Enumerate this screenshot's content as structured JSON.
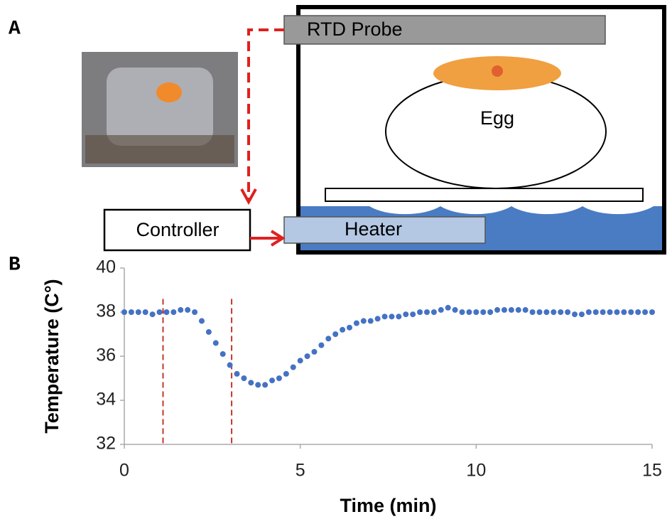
{
  "panel_a": {
    "label": "A",
    "probe": "RTD Probe",
    "egg": "Egg",
    "controller": "Controller",
    "heater": "Heater"
  },
  "panel_b": {
    "label": "B"
  },
  "chart_data": {
    "type": "scatter",
    "xlabel": "Time (min)",
    "ylabel": "Temperature (C°)",
    "xlim": [
      0,
      15
    ],
    "xticks": [
      0,
      5,
      10,
      15
    ],
    "ylim": [
      32,
      40
    ],
    "yticks": [
      32,
      34,
      36,
      38,
      40
    ],
    "vlines": [
      1.1,
      3.05
    ],
    "vline_color": "#c0392b",
    "series": [
      {
        "color": "#4472c4",
        "x": [
          0,
          0.2,
          0.4,
          0.6,
          0.8,
          1,
          1.2,
          1.4,
          1.6,
          1.8,
          2,
          2.2,
          2.4,
          2.6,
          2.8,
          3,
          3.2,
          3.4,
          3.6,
          3.8,
          4,
          4.2,
          4.4,
          4.6,
          4.8,
          5,
          5.2,
          5.4,
          5.6,
          5.8,
          6,
          6.2,
          6.4,
          6.6,
          6.8,
          7,
          7.2,
          7.4,
          7.6,
          7.8,
          8,
          8.2,
          8.4,
          8.6,
          8.8,
          9,
          9.2,
          9.4,
          9.6,
          9.8,
          10,
          10.2,
          10.4,
          10.6,
          10.8,
          11,
          11.2,
          11.4,
          11.6,
          11.8,
          12,
          12.2,
          12.4,
          12.6,
          12.8,
          13,
          13.2,
          13.4,
          13.6,
          13.8,
          14,
          14.2,
          14.4,
          14.6,
          14.8,
          15
        ],
        "values": [
          38,
          38,
          38,
          38,
          37.9,
          38,
          38,
          38,
          38.1,
          38.1,
          38,
          37.6,
          37.1,
          36.6,
          36.1,
          35.6,
          35.2,
          35,
          34.8,
          34.7,
          34.7,
          34.9,
          35,
          35.2,
          35.5,
          35.8,
          36,
          36.2,
          36.5,
          36.8,
          37,
          37.2,
          37.3,
          37.5,
          37.6,
          37.6,
          37.7,
          37.8,
          37.8,
          37.8,
          37.9,
          37.9,
          38,
          38,
          38,
          38.1,
          38.2,
          38.1,
          38,
          38,
          38,
          38,
          38,
          38.1,
          38.1,
          38.1,
          38.1,
          38.1,
          38,
          38,
          38,
          38,
          38,
          38,
          37.9,
          37.9,
          38,
          38,
          38,
          38,
          38,
          38,
          38,
          38,
          38,
          38
        ]
      }
    ]
  }
}
